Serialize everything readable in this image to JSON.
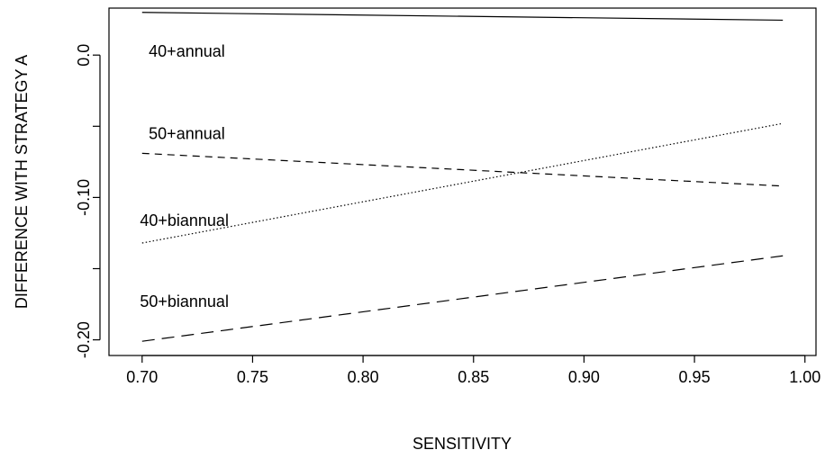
{
  "chart_data": {
    "type": "line",
    "title": "",
    "xlabel": "SENSITIVITY",
    "ylabel": "DIFFERENCE WITH STRATEGY A",
    "xlim": [
      0.685,
      1.005
    ],
    "ylim": [
      -0.211,
      0.033
    ],
    "xticks": [
      0.7,
      0.75,
      0.8,
      0.85,
      0.9,
      0.95,
      1.0
    ],
    "xtick_labels": [
      "0.70",
      "0.75",
      "0.80",
      "0.85",
      "0.90",
      "0.95",
      "1.00"
    ],
    "yticks": [
      0.0,
      -0.05,
      -0.1,
      -0.15,
      -0.2
    ],
    "ytick_labels": [
      "0.0",
      "",
      "-0.10",
      "",
      "-0.20"
    ],
    "grid": false,
    "legend": "none",
    "series": [
      {
        "name": "40+annual",
        "style": "solid",
        "x": [
          0.7,
          0.99
        ],
        "y": [
          0.03,
          0.0245
        ],
        "label_at": [
          0.703,
          -0.001
        ]
      },
      {
        "name": "50+annual",
        "style": "dashed",
        "x": [
          0.7,
          0.99
        ],
        "y": [
          -0.069,
          -0.092
        ],
        "label_at": [
          0.703,
          -0.059
        ]
      },
      {
        "name": "40+biannual",
        "style": "dotted",
        "x": [
          0.7,
          0.99
        ],
        "y": [
          -0.132,
          -0.048
        ],
        "label_at": [
          0.699,
          -0.12
        ]
      },
      {
        "name": "50+biannual",
        "style": "longdash",
        "x": [
          0.7,
          0.99
        ],
        "y": [
          -0.201,
          -0.141
        ],
        "label_at": [
          0.699,
          -0.177
        ]
      }
    ]
  }
}
